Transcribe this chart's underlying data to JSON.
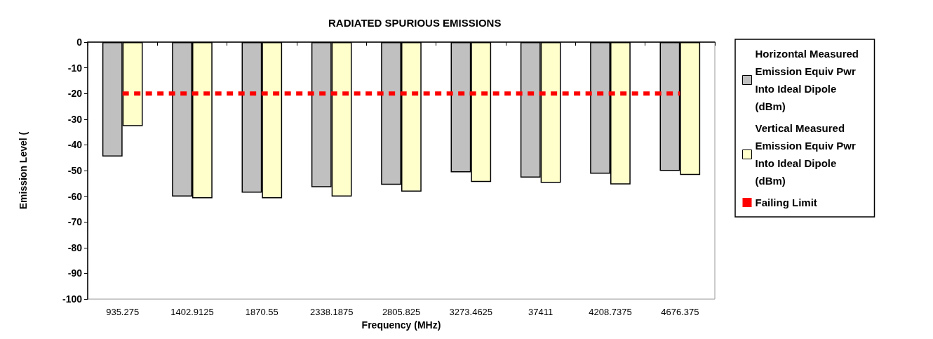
{
  "chart_data": {
    "type": "bar",
    "title": "RADIATED SPURIOUS EMISSIONS",
    "xlabel": "Frequency (MHz)",
    "ylabel": "Emission Level (",
    "categories": [
      "935.275",
      "1402.9125",
      "1870.55",
      "2338.1875",
      "2805.825",
      "3273.4625",
      "37411",
      "4208.7375",
      "4676.375"
    ],
    "series": [
      {
        "name": "Horizontal Measured Emission Equiv Pwr Into Ideal Dipole (dBm)",
        "color": "#c0c0c0",
        "values": [
          -44.5,
          -60.1,
          -58.6,
          -56.5,
          -55.5,
          -50.7,
          -52.7,
          -51.2,
          -50.1
        ]
      },
      {
        "name": "Vertical Measured Emission Equiv Pwr Into Ideal Dipole (dBm)",
        "color": "#ffffcc",
        "values": [
          -32.7,
          -60.8,
          -60.8,
          -60.1,
          -58.2,
          -54.4,
          -54.8,
          -55.4,
          -51.7
        ]
      },
      {
        "name": "Failing Limit",
        "type": "line",
        "color": "#ff0000",
        "line_style": "dashed",
        "marker": "none",
        "values": [
          -20,
          -20,
          -20,
          -20,
          -20,
          -20,
          -20,
          -20,
          -20
        ]
      }
    ],
    "ylim": [
      -100,
      0
    ],
    "yticks": [
      -100,
      -90,
      -80,
      -70,
      -60,
      -50,
      -40,
      -30,
      -20,
      -10,
      0
    ],
    "grid": false,
    "legend": "right"
  }
}
